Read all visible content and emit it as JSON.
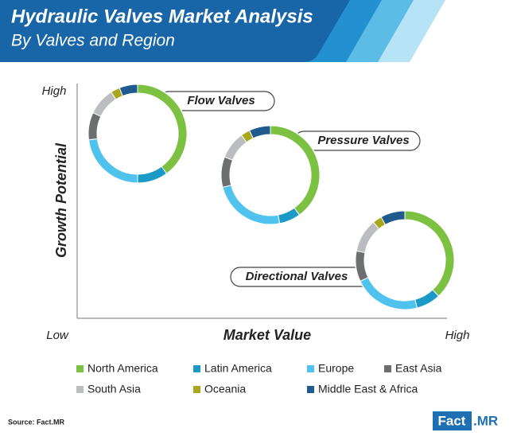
{
  "header": {
    "title": "Hydraulic Valves Market Analysis",
    "subtitle": "By Valves and Region"
  },
  "chart_data": {
    "type": "donut",
    "categories": [
      "Flow Valves",
      "Pressure Valves",
      "Directional Valves"
    ],
    "y_axis": {
      "label": "Growth Potential",
      "high": "High"
    },
    "x_axis": {
      "label": "Market Value",
      "low": "Low",
      "high": "High"
    },
    "series": [
      {
        "name": "North America",
        "color": "#7dc142",
        "values": [
          40,
          40,
          38
        ]
      },
      {
        "name": "Latin America",
        "color": "#1b9ac7",
        "values": [
          10,
          7,
          8
        ]
      },
      {
        "name": "Europe",
        "color": "#4fc3ee",
        "values": [
          23,
          24,
          22
        ]
      },
      {
        "name": "East Asia",
        "color": "#6d6e70",
        "values": [
          9,
          10,
          10
        ]
      },
      {
        "name": "South Asia",
        "color": "#bcbdc0",
        "values": [
          9,
          9,
          11
        ]
      },
      {
        "name": "Oceania",
        "color": "#a8a81a",
        "values": [
          3,
          3,
          3
        ]
      },
      {
        "name": "Middle East & Africa",
        "color": "#1f5b8e",
        "values": [
          6,
          7,
          8
        ]
      }
    ]
  },
  "footer": {
    "source": "Source: Fact.MR",
    "logo": {
      "left": "Fact",
      "right": ".MR"
    }
  }
}
